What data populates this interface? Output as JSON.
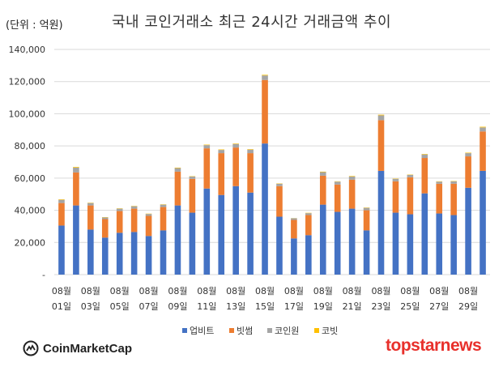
{
  "unit_label": "(단위 : 억원)",
  "title": "국내 코인거래소 최근 24시간 거래금액 추이",
  "watermark_left": "CoinMarketCap",
  "watermark_right": "topstarnews",
  "chart_data": {
    "type": "bar",
    "stacked": true,
    "title": "국내 코인거래소 최근 24시간 거래금액 추이",
    "ylabel": "(단위 : 억원)",
    "ylim": [
      0,
      140000
    ],
    "yticks": [
      "-",
      "20,000",
      "40,000",
      "60,000",
      "80,000",
      "100,000",
      "120,000",
      "140,000"
    ],
    "grid": true,
    "legend_position": "bottom",
    "categories": [
      "01일",
      "02일",
      "03일",
      "04일",
      "05일",
      "06일",
      "07일",
      "08일",
      "09일",
      "10일",
      "11일",
      "12일",
      "13일",
      "14일",
      "15일",
      "16일",
      "17일",
      "18일",
      "19일",
      "20일",
      "21일",
      "22일",
      "23일",
      "24일",
      "25일",
      "26일",
      "27일",
      "28일",
      "29일",
      "30일"
    ],
    "x_tick_labels": [
      {
        "top": "08월",
        "bottom": "01일"
      },
      {
        "top": "08월",
        "bottom": "03일"
      },
      {
        "top": "08월",
        "bottom": "05일"
      },
      {
        "top": "08월",
        "bottom": "07일"
      },
      {
        "top": "08월",
        "bottom": "09일"
      },
      {
        "top": "08월",
        "bottom": "11일"
      },
      {
        "top": "08월",
        "bottom": "13일"
      },
      {
        "top": "08월",
        "bottom": "15일"
      },
      {
        "top": "08월",
        "bottom": "17일"
      },
      {
        "top": "08월",
        "bottom": "19일"
      },
      {
        "top": "08월",
        "bottom": "21일"
      },
      {
        "top": "08월",
        "bottom": "23일"
      },
      {
        "top": "08월",
        "bottom": "25일"
      },
      {
        "top": "08월",
        "bottom": "27일"
      },
      {
        "top": "08월",
        "bottom": "29일"
      }
    ],
    "series": [
      {
        "name": "업비트",
        "color": "#4472C4",
        "values": [
          30500,
          43000,
          28000,
          23000,
          26000,
          26500,
          24000,
          27500,
          43000,
          38500,
          53500,
          49500,
          55000,
          51000,
          81500,
          36000,
          22500,
          24500,
          43500,
          39000,
          41000,
          27500,
          64500,
          38500,
          37500,
          50500,
          38000,
          37000,
          54000,
          64500
        ]
      },
      {
        "name": "빗썸",
        "color": "#ED7D31",
        "values": [
          14000,
          20500,
          15000,
          11500,
          13500,
          14500,
          12500,
          14500,
          21000,
          21000,
          25000,
          26000,
          24000,
          24500,
          39500,
          19000,
          11500,
          12500,
          18000,
          17000,
          18000,
          12500,
          31500,
          19500,
          23000,
          22000,
          18500,
          19500,
          19500,
          24500
        ]
      },
      {
        "name": "코인원",
        "color": "#A5A5A5",
        "values": [
          2000,
          3000,
          1500,
          1000,
          1500,
          1500,
          1200,
          1500,
          2200,
          1500,
          2000,
          2000,
          2200,
          2200,
          2800,
          1500,
          1000,
          1200,
          2200,
          1800,
          2000,
          1500,
          3000,
          1500,
          1500,
          2200,
          1300,
          1500,
          2000,
          2500
        ]
      },
      {
        "name": "코빗",
        "color": "#FFC000",
        "values": [
          300,
          400,
          200,
          200,
          200,
          200,
          200,
          200,
          300,
          200,
          300,
          300,
          300,
          300,
          400,
          200,
          100,
          200,
          300,
          200,
          300,
          200,
          400,
          200,
          200,
          300,
          200,
          200,
          300,
          400
        ]
      }
    ]
  }
}
